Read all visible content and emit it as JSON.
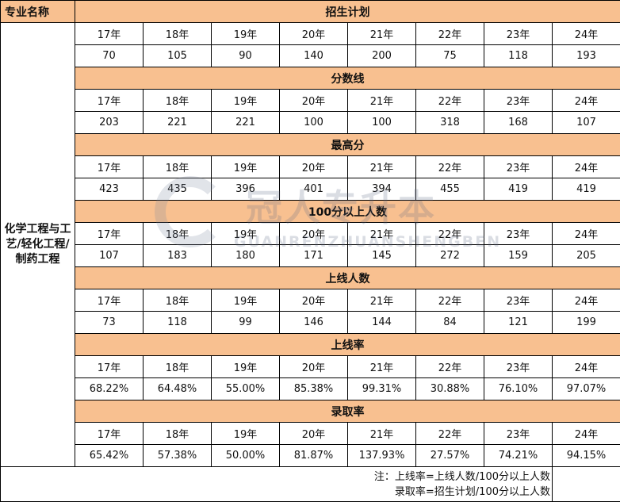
{
  "header": {
    "corner": "专业名称"
  },
  "major": "化学工程与工艺/轻化工程/制药工程",
  "years": [
    "17年",
    "18年",
    "19年",
    "20年",
    "21年",
    "22年",
    "23年",
    "24年"
  ],
  "sections": [
    {
      "title": "招生计划",
      "values": [
        "70",
        "105",
        "90",
        "140",
        "200",
        "75",
        "118",
        "193"
      ]
    },
    {
      "title": "分数线",
      "values": [
        "203",
        "221",
        "221",
        "100",
        "100",
        "318",
        "168",
        "107"
      ]
    },
    {
      "title": "最高分",
      "values": [
        "423",
        "435",
        "396",
        "401",
        "394",
        "455",
        "419",
        "419"
      ]
    },
    {
      "title": "100分以上人数",
      "values": [
        "107",
        "183",
        "180",
        "171",
        "145",
        "272",
        "159",
        "205"
      ]
    },
    {
      "title": "上线人数",
      "values": [
        "73",
        "118",
        "99",
        "146",
        "144",
        "84",
        "121",
        "199"
      ]
    },
    {
      "title": "上线率",
      "values": [
        "68.22%",
        "64.48%",
        "55.00%",
        "85.38%",
        "99.31%",
        "30.88%",
        "76.10%",
        "97.07%"
      ]
    },
    {
      "title": "录取率",
      "values": [
        "65.42%",
        "57.38%",
        "50.00%",
        "81.87%",
        "137.93%",
        "27.57%",
        "74.21%",
        "94.15%"
      ]
    }
  ],
  "note": {
    "line1": "注：上线率=上线人数/100分以上人数",
    "line2": "录取率=招生计划/100分以上人数"
  },
  "watermark": {
    "text_cn": "冠人专升本",
    "text_en": "GUANRENZHUANSHENGBEN"
  },
  "colors": {
    "header_fill": "#f8c090"
  }
}
